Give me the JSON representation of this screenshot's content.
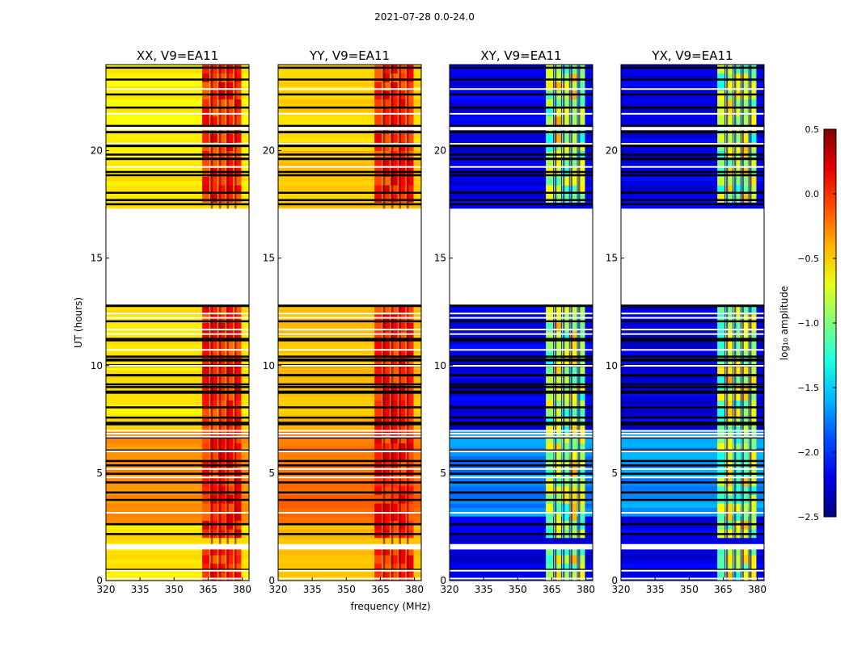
{
  "figure": {
    "suptitle": "2021-07-28 0.0-24.0"
  },
  "chart_data": {
    "type": "heatmap",
    "ylabel": "UT (hours)",
    "xlabel": "frequency (MHz)",
    "xlim": [
      320,
      383
    ],
    "ylim": [
      0,
      24
    ],
    "xticks": [
      320,
      335,
      350,
      365,
      380
    ],
    "yticks": [
      0,
      5,
      10,
      15,
      20
    ],
    "panels": [
      {
        "title": "XX, V9=EA11",
        "kind": "parallel",
        "level": -0.55
      },
      {
        "title": "YY, V9=EA11",
        "kind": "parallel",
        "level": -0.45
      },
      {
        "title": "XY, V9=EA11",
        "kind": "cross",
        "level": -2.2
      },
      {
        "title": "YX, V9=EA11",
        "kind": "cross",
        "level": -2.2
      }
    ],
    "data_gap_hours": [
      [
        12.8,
        17.3
      ],
      [
        20.95,
        21.1
      ],
      [
        1.45,
        1.7
      ]
    ],
    "colorbar": {
      "label": "log₁₀ amplitude",
      "vmin": -2.5,
      "vmax": 0.5,
      "ticks": [
        0.5,
        0.0,
        -0.5,
        -1.0,
        -1.5,
        -2.0,
        -2.5
      ],
      "tick_labels": [
        "0.5",
        "0.0",
        "−0.5",
        "−1.0",
        "−1.5",
        "−2.0",
        "−2.5"
      ],
      "colormap": "jet"
    }
  }
}
